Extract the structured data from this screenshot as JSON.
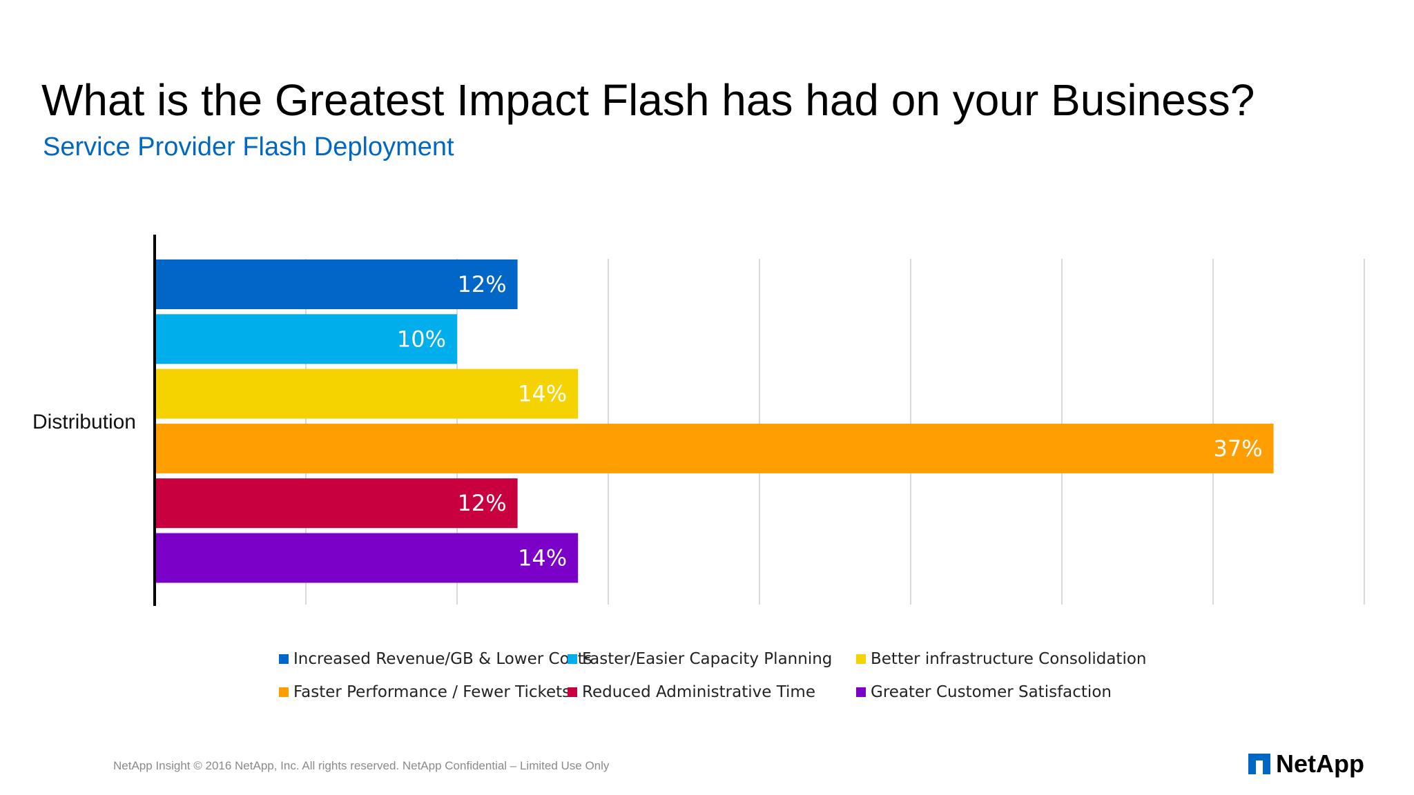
{
  "slide": {
    "title": "What is the Greatest Impact Flash has had on your Business?",
    "subtitle": "Service Provider Flash Deployment",
    "footer": "NetApp Insight  © 2016 NetApp, Inc. All rights reserved. NetApp Confidential – Limited Use Only",
    "logo_text": "NetApp",
    "colors": {
      "subtitle": "#0067C5",
      "logo": "#0067C5"
    }
  },
  "chart_data": {
    "type": "bar",
    "orientation": "horizontal",
    "title": "",
    "xlabel": "",
    "ylabel": "",
    "categories": [
      "Distribution"
    ],
    "series": [
      {
        "name": "Increased Revenue/GB & Lower Costs",
        "values": [
          12
        ],
        "label": "12%",
        "color": "#0066C8"
      },
      {
        "name": "Faster/Easier Capacity Planning",
        "values": [
          10
        ],
        "label": "10%",
        "color": "#00AEEC"
      },
      {
        "name": "Better infrastructure Consolidation",
        "values": [
          14
        ],
        "label": "14%",
        "color": "#F5D300"
      },
      {
        "name": "Faster Performance / Fewer Tickets",
        "values": [
          37
        ],
        "label": "37%",
        "color": "#FF9E00"
      },
      {
        "name": "Reduced Administrative Time",
        "values": [
          12
        ],
        "label": "12%",
        "color": "#C8003F"
      },
      {
        "name": "Greater Customer Satisfaction",
        "values": [
          14
        ],
        "label": "14%",
        "color": "#7B00C8"
      }
    ],
    "xlim": [
      0,
      40
    ],
    "x_gridline_step": 5,
    "grid": true,
    "legend_position": "bottom"
  }
}
